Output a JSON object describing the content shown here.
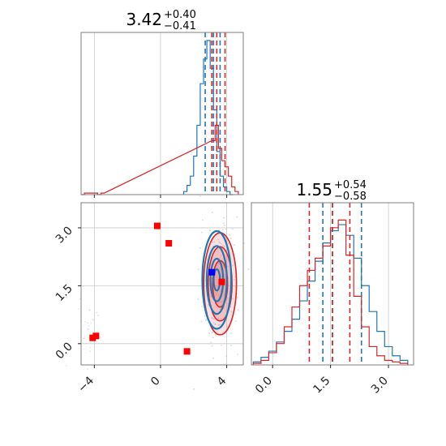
{
  "colors": {
    "blue": "#1f77b4",
    "red": "#d62728",
    "red_fill": "#e8868a",
    "marker": "#ff0000",
    "marker_blue": "#0000ff"
  },
  "chart_data": [
    {
      "type": "histogram",
      "panel": "top-left (param 1 marginal)",
      "title": {
        "value": "3.42",
        "plus": "+0.40",
        "minus": "−0.41"
      },
      "xlim": [
        -4.8,
        5.0
      ],
      "grid": true,
      "series": [
        {
          "color": "blue",
          "x": [
            1.5,
            1.7,
            1.9,
            2.1,
            2.3,
            2.5,
            2.7,
            2.9,
            3.1,
            3.3,
            3.5,
            3.7,
            3.9,
            4.1,
            4.3
          ],
          "values": [
            0.02,
            0.06,
            0.12,
            0.25,
            0.45,
            0.72,
            0.88,
            1.0,
            0.82,
            0.55,
            0.28,
            0.12,
            0.05,
            0.02,
            0.0
          ],
          "quantile_lines": [
            2.7,
            3.2,
            3.6
          ]
        },
        {
          "color": "red",
          "x": [
            -4.7,
            -4.5,
            -4.3,
            -4.1,
            -3.9,
            -3.7,
            -3.5,
            3.2,
            3.4,
            3.6,
            3.8,
            4.0,
            4.2,
            4.4,
            4.6
          ],
          "values": [
            0.0,
            0.01,
            0.01,
            0.01,
            0.01,
            0.0,
            0.01,
            0.35,
            0.45,
            0.3,
            0.22,
            0.18,
            0.12,
            0.05,
            0.02
          ],
          "quantile_lines": [
            3.1,
            3.4,
            3.9
          ]
        }
      ]
    },
    {
      "type": "contour-scatter",
      "panel": "bottom-left (param 1 vs param 2)",
      "xlim": [
        -4.8,
        5.0
      ],
      "ylim": [
        -0.55,
        3.65
      ],
      "xticks": [
        "−4",
        "0",
        "4"
      ],
      "yticks": [
        "0.0",
        "1.5",
        "3.0"
      ],
      "grid": true,
      "contours": [
        {
          "color": "blue",
          "center": [
            3.4,
            1.65
          ],
          "sigma": [
            0.38,
            0.55
          ]
        },
        {
          "color": "red",
          "center": [
            3.6,
            1.55
          ],
          "sigma": [
            0.45,
            0.6
          ]
        }
      ],
      "markers_red": [
        [
          -0.2,
          3.05
        ],
        [
          0.5,
          2.6
        ],
        [
          1.6,
          -0.2
        ],
        [
          -4.1,
          0.15
        ],
        [
          -3.9,
          0.2
        ],
        [
          3.7,
          1.6
        ]
      ],
      "marker_blue": [
        3.1,
        1.85
      ]
    },
    {
      "type": "histogram",
      "panel": "bottom-right (param 2 marginal)",
      "title": {
        "value": "1.55",
        "plus": "+0.54",
        "minus": "−0.58"
      },
      "xlim": [
        -0.55,
        3.65
      ],
      "xticks": [
        "0.0",
        "1.5",
        "3.0"
      ],
      "grid": true,
      "series": [
        {
          "color": "blue",
          "x": [
            -0.4,
            -0.2,
            0.0,
            0.2,
            0.4,
            0.6,
            0.8,
            1.0,
            1.2,
            1.4,
            1.6,
            1.8,
            2.0,
            2.2,
            2.4,
            2.6,
            2.8,
            3.0,
            3.2,
            3.4
          ],
          "values": [
            0.02,
            0.05,
            0.09,
            0.15,
            0.22,
            0.3,
            0.42,
            0.55,
            0.68,
            0.8,
            0.88,
            0.92,
            0.85,
            0.7,
            0.52,
            0.35,
            0.22,
            0.12,
            0.06,
            0.03
          ],
          "quantile_lines": [
            1.3,
            1.55,
            2.3
          ]
        },
        {
          "color": "red",
          "x": [
            -0.4,
            -0.2,
            0.0,
            0.2,
            0.4,
            0.6,
            0.8,
            1.0,
            1.2,
            1.4,
            1.6,
            1.8,
            2.0,
            2.2,
            2.4,
            2.6,
            2.8,
            3.0,
            3.2,
            3.4
          ],
          "values": [
            0.01,
            0.03,
            0.08,
            0.14,
            0.25,
            0.38,
            0.52,
            0.62,
            0.7,
            0.78,
            0.9,
            0.95,
            0.72,
            0.45,
            0.25,
            0.12,
            0.06,
            0.03,
            0.02,
            0.01
          ],
          "quantile_lines": [
            0.95,
            1.55,
            2.0
          ]
        }
      ]
    }
  ]
}
